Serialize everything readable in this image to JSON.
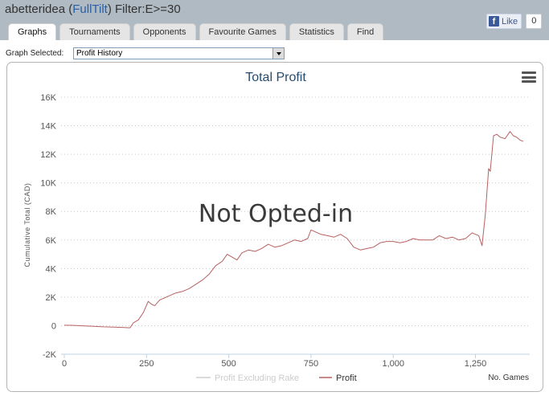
{
  "header": {
    "user": "abetteridea",
    "open_paren": " (",
    "site": "FullTilt",
    "close_paren": ")",
    "filter": " Filter:E>=30"
  },
  "facebook": {
    "like_label": "Like",
    "like_count": "0",
    "icon": "facebook-icon"
  },
  "tabs": [
    {
      "label": "Graphs",
      "active": true
    },
    {
      "label": "Tournaments"
    },
    {
      "label": "Opponents"
    },
    {
      "label": "Favourite Games"
    },
    {
      "label": "Statistics"
    },
    {
      "label": "Find"
    }
  ],
  "graph_select": {
    "label": "Graph Selected:",
    "value": "Profit History"
  },
  "chart_menu_icon": "hamburger-menu-icon",
  "watermark": "Not Opted-in",
  "chart_data": {
    "type": "line",
    "title": "Total Profit",
    "ylabel": "Cumulative Total (CAD)",
    "xlabel": "No. Games",
    "xlim": [
      0,
      1410
    ],
    "ylim": [
      -2000,
      16000
    ],
    "x_ticks": [
      0,
      250,
      500,
      750,
      1000,
      1250
    ],
    "x_tick_labels": [
      "0",
      "250",
      "500",
      "750",
      "1,000",
      "1,250"
    ],
    "y_ticks": [
      -2000,
      0,
      2000,
      4000,
      6000,
      8000,
      10000,
      12000,
      14000,
      16000
    ],
    "y_tick_labels": [
      "-2K",
      "0",
      "2K",
      "4K",
      "6K",
      "8K",
      "10K",
      "12K",
      "14K",
      "16K"
    ],
    "grid": true,
    "legend_position": "bottom",
    "series": [
      {
        "name": "Profit Excluding Rake",
        "color": "#cfcfcf",
        "x": [],
        "y": []
      },
      {
        "name": "Profit",
        "color": "#b86060",
        "x": [
          0,
          30,
          60,
          90,
          120,
          150,
          175,
          200,
          210,
          225,
          240,
          255,
          265,
          275,
          290,
          300,
          320,
          340,
          360,
          380,
          400,
          420,
          440,
          460,
          480,
          495,
          510,
          525,
          540,
          560,
          580,
          600,
          620,
          640,
          660,
          680,
          700,
          720,
          740,
          750,
          760,
          770,
          780,
          800,
          820,
          840,
          860,
          880,
          900,
          920,
          940,
          960,
          980,
          1000,
          1020,
          1040,
          1060,
          1080,
          1100,
          1120,
          1140,
          1160,
          1180,
          1200,
          1220,
          1240,
          1260,
          1270,
          1280,
          1290,
          1295,
          1305,
          1315,
          1325,
          1340,
          1355,
          1365,
          1375,
          1385,
          1395
        ],
        "y": [
          30,
          20,
          -20,
          -50,
          -80,
          -100,
          -120,
          -150,
          200,
          400,
          900,
          1700,
          1500,
          1400,
          1800,
          1900,
          2100,
          2300,
          2400,
          2600,
          2900,
          3200,
          3600,
          4200,
          4500,
          5000,
          4800,
          4600,
          5100,
          5300,
          5200,
          5400,
          5700,
          5500,
          5600,
          5800,
          6000,
          5900,
          6100,
          6700,
          6600,
          6500,
          6400,
          6300,
          6200,
          6400,
          6100,
          5500,
          5300,
          5400,
          5500,
          5800,
          5900,
          5900,
          5800,
          5900,
          6100,
          6000,
          6000,
          6000,
          6300,
          6100,
          6200,
          6000,
          6100,
          6500,
          6300,
          5600,
          7800,
          11000,
          10800,
          13300,
          13400,
          13200,
          13100,
          13600,
          13300,
          13200,
          13000,
          12900
        ]
      }
    ]
  }
}
